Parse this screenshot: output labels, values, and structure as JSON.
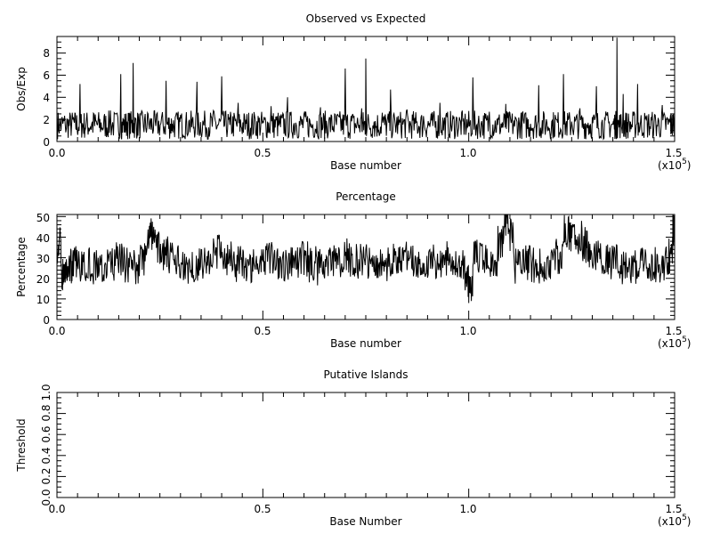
{
  "chart_data": [
    {
      "type": "line",
      "title": "Observed vs Expected",
      "xlabel": "Base number",
      "ylabel": "Obs/Exp",
      "x_multiplier": "(x10",
      "x_multiplier_exp": "5",
      "x_tick_labels": [
        "0.0",
        "0.5",
        "1.0",
        "1.5"
      ],
      "y_tick_labels": [
        "0",
        "2",
        "4",
        "6",
        "8"
      ],
      "xlim": [
        0,
        150000
      ],
      "ylim": [
        0,
        9.5
      ],
      "series": [
        {
          "values": [
            [
              0,
              0.9
            ],
            [
              2000,
              1.5
            ],
            [
              4000,
              2.2
            ],
            [
              5600,
              5.2
            ],
            [
              7000,
              1.3
            ],
            [
              9000,
              2.5
            ],
            [
              11000,
              1.2
            ],
            [
              13000,
              2.8
            ],
            [
              15500,
              6.1
            ],
            [
              17000,
              1.8
            ],
            [
              18500,
              7.1
            ],
            [
              20000,
              1.9
            ],
            [
              22000,
              2.6
            ],
            [
              24000,
              1.4
            ],
            [
              26500,
              5.5
            ],
            [
              28000,
              1.6
            ],
            [
              30000,
              2.4
            ],
            [
              32000,
              1.8
            ],
            [
              34000,
              5.4
            ],
            [
              36000,
              1.7
            ],
            [
              38000,
              2.8
            ],
            [
              40000,
              5.9
            ],
            [
              42000,
              1.5
            ],
            [
              44000,
              3.5
            ],
            [
              46000,
              1.6
            ],
            [
              48000,
              2.3
            ],
            [
              50000,
              1.8
            ],
            [
              52000,
              3.2
            ],
            [
              54000,
              1.6
            ],
            [
              56000,
              4.0
            ],
            [
              58000,
              1.7
            ],
            [
              60000,
              2.5
            ],
            [
              62000,
              1.4
            ],
            [
              64000,
              3.1
            ],
            [
              66000,
              1.9
            ],
            [
              68000,
              2.4
            ],
            [
              70000,
              6.6
            ],
            [
              72000,
              2.1
            ],
            [
              74000,
              3.0
            ],
            [
              75000,
              7.5
            ],
            [
              77000,
              1.8
            ],
            [
              79000,
              2.6
            ],
            [
              81000,
              4.7
            ],
            [
              83000,
              1.5
            ],
            [
              85000,
              2.9
            ],
            [
              87000,
              1.6
            ],
            [
              89000,
              2.3
            ],
            [
              91000,
              1.9
            ],
            [
              93000,
              3.5
            ],
            [
              95000,
              1.4
            ],
            [
              97000,
              2.2
            ],
            [
              99000,
              1.7
            ],
            [
              101000,
              5.8
            ],
            [
              103000,
              1.6
            ],
            [
              105000,
              2.7
            ],
            [
              107000,
              1.5
            ],
            [
              109000,
              3.4
            ],
            [
              111000,
              1.9
            ],
            [
              113000,
              2.6
            ],
            [
              115000,
              1.6
            ],
            [
              117000,
              5.1
            ],
            [
              119000,
              1.7
            ],
            [
              121000,
              2.4
            ],
            [
              123000,
              6.1
            ],
            [
              125000,
              1.8
            ],
            [
              127000,
              3.0
            ],
            [
              129000,
              1.7
            ],
            [
              131000,
              5.0
            ],
            [
              133000,
              2.1
            ],
            [
              135000,
              1.6
            ],
            [
              136000,
              9.4
            ],
            [
              137500,
              4.3
            ],
            [
              139000,
              1.8
            ],
            [
              141000,
              5.2
            ],
            [
              143000,
              2.2
            ],
            [
              145000,
              1.7
            ],
            [
              147000,
              3.3
            ],
            [
              149000,
              2.4
            ],
            [
              150000,
              1.5
            ]
          ]
        }
      ]
    },
    {
      "type": "line",
      "title": "Percentage",
      "xlabel": "Base number",
      "ylabel": "Percentage",
      "x_multiplier": "(x10",
      "x_multiplier_exp": "5",
      "x_tick_labels": [
        "0.0",
        "0.5",
        "1.0",
        "1.5"
      ],
      "y_tick_labels": [
        "0",
        "10",
        "20",
        "30",
        "40",
        "50"
      ],
      "xlim": [
        0,
        150000
      ],
      "ylim": [
        0,
        51
      ],
      "series": [
        {
          "values": [
            [
              0,
              46
            ],
            [
              1000,
              26
            ],
            [
              2000,
              18
            ],
            [
              3000,
              31
            ],
            [
              4000,
              21
            ],
            [
              6000,
              33
            ],
            [
              8000,
              22
            ],
            [
              10000,
              30
            ],
            [
              12000,
              20
            ],
            [
              14000,
              34
            ],
            [
              16000,
              23
            ],
            [
              18000,
              30
            ],
            [
              20000,
              21
            ],
            [
              22000,
              38
            ],
            [
              23500,
              45
            ],
            [
              25000,
              27
            ],
            [
              27000,
              36
            ],
            [
              29000,
              22
            ],
            [
              31000,
              32
            ],
            [
              33000,
              20
            ],
            [
              35000,
              34
            ],
            [
              37000,
              22
            ],
            [
              39000,
              41
            ],
            [
              41000,
              25
            ],
            [
              43000,
              33
            ],
            [
              45000,
              21
            ],
            [
              47000,
              31
            ],
            [
              49000,
              22
            ],
            [
              51000,
              37
            ],
            [
              53000,
              24
            ],
            [
              55000,
              33
            ],
            [
              57000,
              21
            ],
            [
              59000,
              35
            ],
            [
              61000,
              23
            ],
            [
              63000,
              31
            ],
            [
              65000,
              20
            ],
            [
              67000,
              33
            ],
            [
              69000,
              24
            ],
            [
              71000,
              37
            ],
            [
              73000,
              22
            ],
            [
              75000,
              34
            ],
            [
              77000,
              23
            ],
            [
              79000,
              32
            ],
            [
              81000,
              21
            ],
            [
              83000,
              35
            ],
            [
              85000,
              24
            ],
            [
              87000,
              31
            ],
            [
              89000,
              22
            ],
            [
              91000,
              33
            ],
            [
              93000,
              24
            ],
            [
              95000,
              35
            ],
            [
              97000,
              23
            ],
            [
              99000,
              31
            ],
            [
              100000,
              8
            ],
            [
              101000,
              26
            ],
            [
              103000,
              36
            ],
            [
              105000,
              25
            ],
            [
              107000,
              33
            ],
            [
              108500,
              40
            ],
            [
              109500,
              51
            ],
            [
              111000,
              30
            ],
            [
              113000,
              22
            ],
            [
              115000,
              32
            ],
            [
              117000,
              21
            ],
            [
              119000,
              30
            ],
            [
              121000,
              24
            ],
            [
              123000,
              38
            ],
            [
              124500,
              47
            ],
            [
              126000,
              34
            ],
            [
              127500,
              44
            ],
            [
              129000,
              28
            ],
            [
              131000,
              38
            ],
            [
              133000,
              24
            ],
            [
              135000,
              33
            ],
            [
              137000,
              22
            ],
            [
              139000,
              30
            ],
            [
              141000,
              21
            ],
            [
              143000,
              32
            ],
            [
              145000,
              23
            ],
            [
              147000,
              31
            ],
            [
              148500,
              22
            ],
            [
              149500,
              40
            ],
            [
              150000,
              46
            ]
          ]
        }
      ]
    },
    {
      "type": "line",
      "title": "Putative Islands",
      "xlabel": "Base Number",
      "ylabel": "Threshold",
      "x_multiplier": "(x10",
      "x_multiplier_exp": "5",
      "x_tick_labels": [
        "0.0",
        "0.5",
        "1.0",
        "1.5"
      ],
      "y_tick_labels": [
        "0.0",
        "0.2",
        "0.4",
        "0.6",
        "0.8",
        "1.0"
      ],
      "xlim": [
        0,
        150000
      ],
      "ylim": [
        0,
        1
      ],
      "series": []
    }
  ]
}
